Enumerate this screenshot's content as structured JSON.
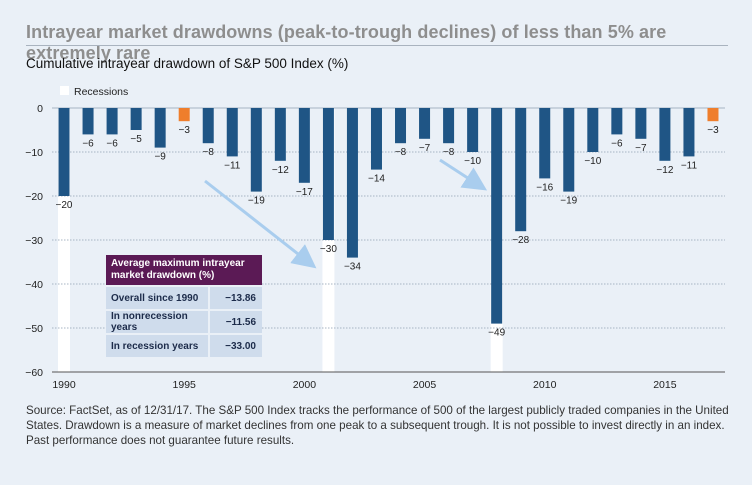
{
  "title": "Intrayear market drawdowns (peak-to-trough declines) of less than 5% are extremely rare",
  "subtitle": "Cumulative intrayear drawdown of S&P 500 Index (%)",
  "stats": {
    "heading": "Average maximum intrayear market drawdown (%)",
    "rows": [
      {
        "label": "Overall since 1990",
        "value": "−13.86"
      },
      {
        "label": "In nonrecession years",
        "value": "−11.56"
      },
      {
        "label": "In recession years",
        "value": "−33.00"
      }
    ]
  },
  "footnote": "Source: FactSet, as of 12/31/17. The S&P 500 Index tracks the performance of 500 of the largest publicly traded companies in the United States. Drawdown is a measure of market declines from one peak to a subsequent trough. It is not possible to invest directly in an index. Past performance does not guarantee future results.",
  "colors": {
    "bar": "#1f5585",
    "highlight": "#ef7e2c",
    "recession": "#ffffff",
    "arrow": "#a9cdee",
    "grid": "#a7b4c3",
    "stats_header": "#5b1a55",
    "stats_row": "#cfdcec"
  },
  "chart_data": {
    "type": "bar",
    "title": "Cumulative intrayear drawdown of S&P 500 Index (%)",
    "xlabel": "",
    "ylabel": "",
    "x": [
      1990,
      1991,
      1992,
      1993,
      1994,
      1995,
      1996,
      1997,
      1998,
      1999,
      2000,
      2001,
      2002,
      2003,
      2004,
      2005,
      2006,
      2007,
      2008,
      2009,
      2010,
      2011,
      2012,
      2013,
      2014,
      2015,
      2016,
      2017
    ],
    "values": [
      -20,
      -6,
      -6,
      -5,
      -9,
      -3,
      -8,
      -11,
      -19,
      -12,
      -17,
      -30,
      -34,
      -14,
      -8,
      -7,
      -8,
      -10,
      -49,
      -28,
      -16,
      -19,
      -10,
      -6,
      -7,
      -12,
      -11,
      -3
    ],
    "value_labels": [
      "−20",
      "−6",
      "−6",
      "−5",
      "−9",
      "−3",
      "−8",
      "−11",
      "−19",
      "−12",
      "−17",
      "−30",
      "−34",
      "−14",
      "−8",
      "−7",
      "−8",
      "−10",
      "−49",
      "−28",
      "−16",
      "−19",
      "−10",
      "−6",
      "−7",
      "−12",
      "−11",
      "−3"
    ],
    "highlighted": [
      1995,
      2017
    ],
    "recession_years": [
      1990,
      2001,
      2008
    ],
    "legend": {
      "label": "Recessions",
      "position": "top-left"
    },
    "ylim": [
      -60,
      0
    ],
    "yticks": [
      0,
      -10,
      -20,
      -30,
      -40,
      -50,
      -60
    ],
    "ytick_labels": [
      "0",
      "−10",
      "−20",
      "−30",
      "−40",
      "−50",
      "−60"
    ],
    "xticks": [
      1990,
      1995,
      2000,
      2005,
      2010,
      2015
    ],
    "grid": true
  }
}
